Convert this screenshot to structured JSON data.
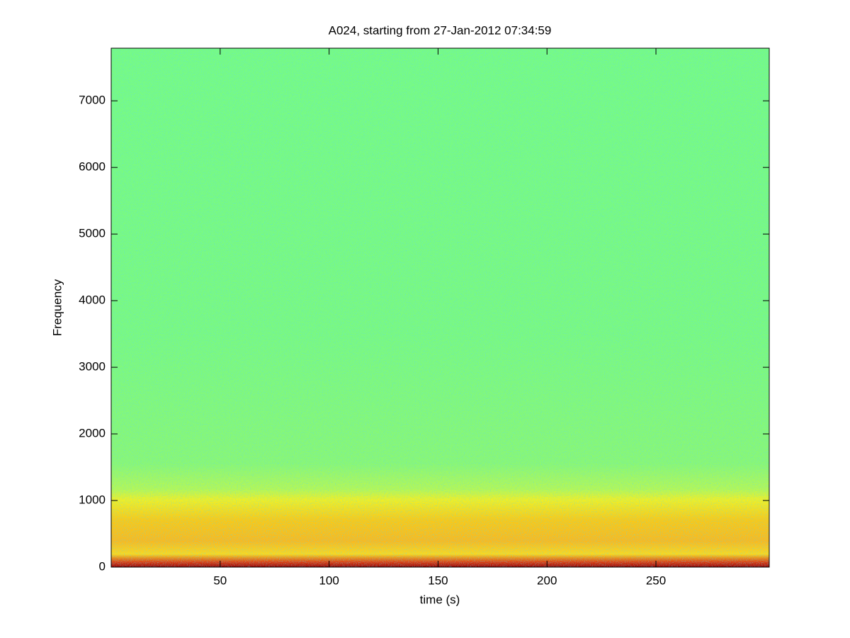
{
  "chart_data": {
    "type": "spectrogram",
    "title": "A024, starting from 27-Jan-2012 07:34:59",
    "x_label": "time (s)",
    "y_label": "Frequency",
    "xlim": [
      0,
      302
    ],
    "ylim": [
      0,
      7790
    ],
    "xticks": [
      50,
      100,
      150,
      200,
      250
    ],
    "yticks": [
      0,
      1000,
      2000,
      3000,
      4000,
      5000,
      6000,
      7000
    ],
    "colormap": "jet"
  }
}
